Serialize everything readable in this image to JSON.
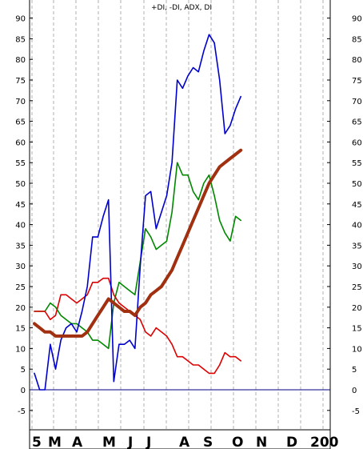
{
  "chart_data": {
    "type": "line",
    "title": "+DI, -DI, ADX, DI",
    "ylim": [
      -8,
      95
    ],
    "y_ticks": [
      -5,
      0,
      5,
      10,
      15,
      20,
      25,
      30,
      35,
      40,
      45,
      50,
      55,
      60,
      65,
      70,
      75,
      80,
      85,
      90
    ],
    "x_labels": [
      "5",
      "M",
      "A",
      "M",
      "J",
      "J",
      "A",
      "S",
      "O",
      "N",
      "D",
      "200"
    ],
    "grid": "vertical dashed",
    "zero_line": 0,
    "colors": {
      "plus_di": "#0000cc",
      "minus_di": "#dd0000",
      "dx": "#008800",
      "adx": "#a03010",
      "zero_line": "#000080",
      "grid": "#b0b0b0"
    },
    "x": [
      1,
      2,
      3,
      4,
      5,
      6,
      7,
      8,
      9,
      10,
      11,
      12,
      13,
      14,
      15,
      16,
      17,
      18,
      19,
      20,
      21,
      22,
      23,
      24,
      25,
      26,
      27,
      28,
      29,
      30,
      31,
      32,
      33,
      34,
      35,
      36,
      37,
      38,
      39,
      40,
      41,
      42,
      43,
      44,
      45,
      46,
      47,
      48,
      49,
      50,
      51,
      52,
      53,
      54,
      55,
      56,
      57
    ],
    "series": [
      {
        "key": "plus_di",
        "values": [
          4,
          0,
          0,
          11,
          5,
          12,
          15,
          16,
          14,
          19,
          25,
          37,
          37,
          42,
          46,
          2,
          11,
          11,
          12,
          10,
          30,
          47,
          48,
          39,
          43,
          47,
          55,
          75,
          73,
          76,
          78,
          77,
          82,
          86,
          84,
          75,
          62,
          64,
          68,
          71,
          null,
          null,
          null,
          null,
          null,
          null,
          null,
          null,
          null,
          null,
          null,
          null,
          null,
          null,
          null,
          null,
          null
        ]
      },
      {
        "key": "minus_di",
        "values": [
          19,
          19,
          19,
          17,
          18,
          23,
          23,
          22,
          21,
          22,
          23,
          26,
          26,
          27,
          27,
          23,
          21,
          20,
          19,
          18,
          17,
          14,
          13,
          15,
          14,
          13,
          11,
          8,
          8,
          7,
          6,
          6,
          5,
          4,
          4,
          6,
          9,
          8,
          8,
          7,
          null,
          null,
          null,
          null,
          null,
          null,
          null,
          null,
          null,
          null,
          null,
          null,
          null,
          null,
          null,
          null,
          null
        ]
      },
      {
        "key": "dx",
        "values": [
          19,
          19,
          19,
          21,
          20,
          18,
          17,
          16,
          16,
          15,
          14,
          12,
          12,
          11,
          10,
          21,
          26,
          25,
          24,
          23,
          31,
          39,
          37,
          34,
          35,
          36,
          43,
          55,
          52,
          52,
          48,
          46,
          50,
          52,
          47,
          41,
          38,
          36,
          42,
          41,
          null,
          null,
          null,
          null,
          null,
          null,
          null,
          null,
          null,
          null,
          null,
          null,
          null,
          null,
          null,
          null,
          null
        ]
      },
      {
        "key": "adx",
        "values": [
          16,
          15,
          14,
          14,
          13,
          13,
          13,
          13,
          13,
          13,
          14,
          16,
          18,
          20,
          22,
          21,
          20,
          19,
          19,
          18,
          20,
          21,
          23,
          24,
          25,
          27,
          29,
          32,
          35,
          38,
          41,
          44,
          47,
          50,
          52,
          54,
          55,
          56,
          57,
          58,
          null,
          null,
          null,
          null,
          null,
          null,
          null,
          null,
          null,
          null,
          null,
          null,
          null,
          null,
          null,
          null,
          null
        ]
      }
    ]
  }
}
